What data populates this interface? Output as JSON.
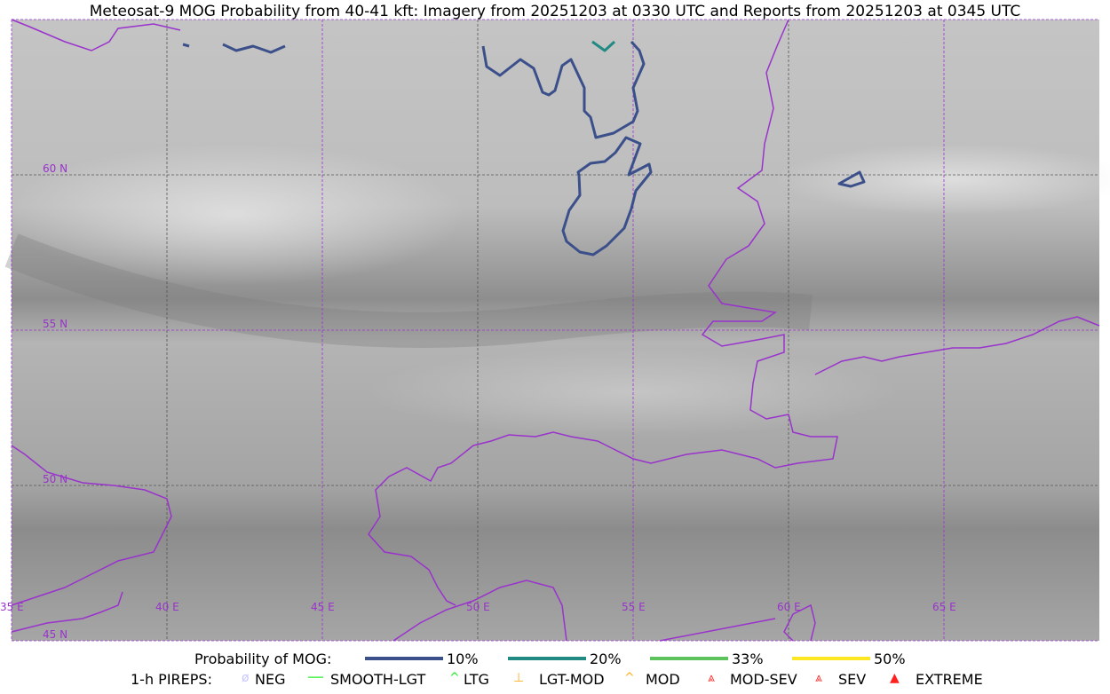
{
  "title": "Meteosat-9 MOG Probability from 40-41 kft: Imagery from 20251203 at 0330 UTC and Reports from 20251203 at 0345 UTC",
  "map": {
    "lon_labels": [
      "35 E",
      "40 E",
      "45 E",
      "50 E",
      "55 E",
      "60 E",
      "65 E"
    ],
    "lat_labels": [
      "60 N",
      "55 N",
      "50 N",
      "45 N"
    ],
    "colors": {
      "coastline": "#9933cc",
      "grid": "#9933cc",
      "background": "#a8a8a8"
    }
  },
  "legend": {
    "probability_label": "Probability of MOG:",
    "probability_items": [
      {
        "label": "10%",
        "color": "#3b4f8a"
      },
      {
        "label": "20%",
        "color": "#218a82"
      },
      {
        "label": "33%",
        "color": "#5cc35c"
      },
      {
        "label": "50%",
        "color": "#fde725"
      }
    ],
    "pirep_label": "1-h PIREPS:",
    "pirep_items": [
      {
        "label": "NEG",
        "icon": "neg-circle-icon",
        "color": "#c8c8ff"
      },
      {
        "label": "SMOOTH-LGT",
        "icon": "line-icon",
        "color": "#22ee22"
      },
      {
        "label": "LTG",
        "icon": "caret-icon",
        "color": "#22ee22"
      },
      {
        "label": "LGT-MOD",
        "icon": "caret-bar-icon",
        "color": "#ffb020"
      },
      {
        "label": "MOD",
        "icon": "caret-icon",
        "color": "#ffb020"
      },
      {
        "label": "MOD-SEV",
        "icon": "double-caret-bar-icon",
        "color": "#ff3030"
      },
      {
        "label": "SEV",
        "icon": "double-caret-icon",
        "color": "#ff3030"
      },
      {
        "label": "EXTREME",
        "icon": "filled-triangle-icon",
        "color": "#ff2020"
      }
    ]
  }
}
